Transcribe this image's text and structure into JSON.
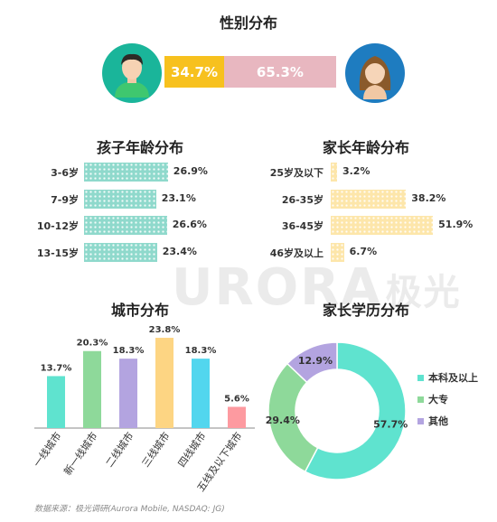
{
  "watermark": {
    "text": "URORA",
    "suffix": "极光"
  },
  "gender": {
    "title": "性别分布",
    "male": {
      "value": 34.7,
      "label": "34.7%",
      "color": "#f7c11e"
    },
    "female": {
      "value": 65.3,
      "label": "65.3%",
      "color": "#e8b7c0"
    }
  },
  "child_age": {
    "title": "孩子年龄分布",
    "rows": [
      {
        "label": "3-6岁",
        "value": 26.9,
        "text": "26.9%"
      },
      {
        "label": "7-9岁",
        "value": 23.1,
        "text": "23.1%"
      },
      {
        "label": "10-12岁",
        "value": 26.6,
        "text": "26.6%"
      },
      {
        "label": "13-15岁",
        "value": 23.4,
        "text": "23.4%"
      }
    ]
  },
  "parent_age": {
    "title": "家长年龄分布",
    "rows": [
      {
        "label": "25岁及以下",
        "value": 3.2,
        "text": "3.2%"
      },
      {
        "label": "26-35岁",
        "value": 38.2,
        "text": "38.2%"
      },
      {
        "label": "36-45岁",
        "value": 51.9,
        "text": "51.9%"
      },
      {
        "label": "46岁及以上",
        "value": 6.7,
        "text": "6.7%"
      }
    ]
  },
  "city": {
    "title": "城市分布",
    "bars": [
      {
        "label": "一线城市",
        "value": 13.7,
        "text": "13.7%",
        "color": "#5fe3cf"
      },
      {
        "label": "新一线城市",
        "value": 20.3,
        "text": "20.3%",
        "color": "#8ed99a"
      },
      {
        "label": "二线城市",
        "value": 18.3,
        "text": "18.3%",
        "color": "#b3a4e0"
      },
      {
        "label": "三线城市",
        "value": 23.8,
        "text": "23.8%",
        "color": "#fdd583"
      },
      {
        "label": "四线城市",
        "value": 18.3,
        "text": "18.3%",
        "color": "#52d6ee"
      },
      {
        "label": "五线及以下城市",
        "value": 5.6,
        "text": "5.6%",
        "color": "#fd9aa0"
      }
    ]
  },
  "education": {
    "title": "家长学历分布",
    "slices": [
      {
        "label": "本科及以上",
        "value": 57.7,
        "text": "57.7%",
        "color": "#5fe3cf"
      },
      {
        "label": "大专",
        "value": 29.4,
        "text": "29.4%",
        "color": "#8ed99a"
      },
      {
        "label": "其他",
        "value": 12.9,
        "text": "12.9%",
        "color": "#b3a4e0"
      }
    ]
  },
  "source": "数据来源：极光调研(Aurora Mobile, NASDAQ: JG)",
  "chart_data": [
    {
      "type": "bar",
      "title": "性别分布",
      "categories": [
        "男",
        "女"
      ],
      "values": [
        34.7,
        65.3
      ]
    },
    {
      "type": "bar",
      "title": "孩子年龄分布",
      "categories": [
        "3-6岁",
        "7-9岁",
        "10-12岁",
        "13-15岁"
      ],
      "values": [
        26.9,
        23.1,
        26.6,
        23.4
      ]
    },
    {
      "type": "bar",
      "title": "家长年龄分布",
      "categories": [
        "25岁及以下",
        "26-35岁",
        "36-45岁",
        "46岁及以上"
      ],
      "values": [
        3.2,
        38.2,
        51.9,
        6.7
      ]
    },
    {
      "type": "bar",
      "title": "城市分布",
      "categories": [
        "一线城市",
        "新一线城市",
        "二线城市",
        "三线城市",
        "四线城市",
        "五线及以下城市"
      ],
      "values": [
        13.7,
        20.3,
        18.3,
        23.8,
        18.3,
        5.6
      ]
    },
    {
      "type": "pie",
      "title": "家长学历分布",
      "categories": [
        "本科及以上",
        "大专",
        "其他"
      ],
      "values": [
        57.7,
        29.4,
        12.9
      ]
    }
  ]
}
